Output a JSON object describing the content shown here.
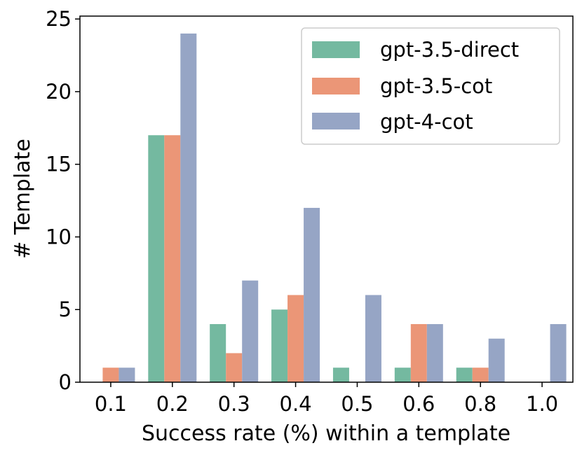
{
  "chart_data": {
    "type": "bar",
    "title": "",
    "xlabel": "Success rate (%) within a template",
    "ylabel": "# Template",
    "categories": [
      "0.1",
      "0.2",
      "0.3",
      "0.4",
      "0.5",
      "0.6",
      "0.8",
      "1.0"
    ],
    "ylim": [
      0,
      25.2
    ],
    "yticks": [
      "0",
      "5",
      "10",
      "15",
      "20",
      "25"
    ],
    "legend_position": "top-right",
    "series": [
      {
        "name": "gpt-3.5-direct",
        "color": "#74b9a0",
        "values": [
          0,
          17,
          4,
          5,
          1,
          1,
          1,
          0
        ]
      },
      {
        "name": "gpt-3.5-cot",
        "color": "#eb9677",
        "values": [
          1,
          17,
          2,
          6,
          0,
          4,
          1,
          0
        ]
      },
      {
        "name": "gpt-4-cot",
        "color": "#96a5c5",
        "values": [
          1,
          24,
          7,
          12,
          6,
          4,
          3,
          4
        ]
      }
    ]
  }
}
